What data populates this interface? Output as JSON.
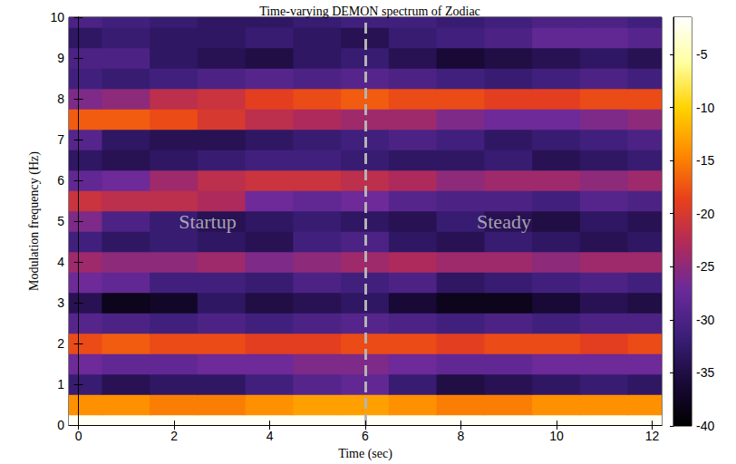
{
  "chart_data": {
    "type": "heatmap",
    "title": "Time-varying DEMON spectrum of Zodiac",
    "x_label": "Time (sec)",
    "y_label": "Modulation frequency (Hz)",
    "x": [
      0,
      1,
      2,
      3,
      4,
      5,
      6,
      7,
      8,
      9,
      10,
      11,
      12
    ],
    "y": [
      0,
      0.5,
      1,
      1.5,
      2,
      2.5,
      3,
      3.5,
      4,
      4.5,
      5,
      5.5,
      6,
      6.5,
      7,
      7.5,
      8,
      8.5,
      9,
      9.5,
      10
    ],
    "values": [
      [
        -2,
        -2,
        -2,
        -2,
        -2,
        -2,
        -2,
        -2,
        -2,
        -2,
        -2,
        -2,
        -2
      ],
      [
        -14,
        -14,
        -15,
        -15,
        -14,
        -13,
        -13,
        -14,
        -15,
        -15,
        -14,
        -14,
        -14
      ],
      [
        -32,
        -34,
        -33,
        -33,
        -31,
        -29,
        -28,
        -32,
        -35,
        -34,
        -33,
        -32,
        -33
      ],
      [
        -27,
        -28,
        -28,
        -27,
        -27,
        -26,
        -26,
        -27,
        -28,
        -28,
        -27,
        -27,
        -27
      ],
      [
        -18,
        -17,
        -18,
        -18,
        -19,
        -19,
        -18,
        -18,
        -19,
        -18,
        -18,
        -19,
        -18
      ],
      [
        -29,
        -30,
        -31,
        -30,
        -31,
        -30,
        -29,
        -30,
        -31,
        -30,
        -31,
        -30,
        -30
      ],
      [
        -34,
        -38,
        -37,
        -33,
        -35,
        -34,
        -33,
        -36,
        -38,
        -38,
        -36,
        -34,
        -35
      ],
      [
        -27,
        -28,
        -31,
        -31,
        -32,
        -30,
        -31,
        -30,
        -33,
        -32,
        -31,
        -30,
        -31
      ],
      [
        -24,
        -25,
        -25,
        -24,
        -26,
        -25,
        -24,
        -23,
        -24,
        -24,
        -25,
        -24,
        -24
      ],
      [
        -31,
        -33,
        -32,
        -33,
        -34,
        -31,
        -30,
        -33,
        -34,
        -32,
        -33,
        -34,
        -33
      ],
      [
        -26,
        -30,
        -32,
        -34,
        -33,
        -32,
        -33,
        -34,
        -32,
        -34,
        -35,
        -33,
        -34
      ],
      [
        -21,
        -22,
        -22,
        -23,
        -27,
        -28,
        -27,
        -29,
        -30,
        -30,
        -31,
        -29,
        -30
      ],
      [
        -28,
        -27,
        -24,
        -22,
        -21,
        -21,
        -22,
        -23,
        -25,
        -24,
        -24,
        -25,
        -24
      ],
      [
        -33,
        -34,
        -33,
        -32,
        -31,
        -31,
        -32,
        -33,
        -33,
        -32,
        -34,
        -33,
        -32
      ],
      [
        -29,
        -33,
        -34,
        -34,
        -33,
        -32,
        -31,
        -30,
        -31,
        -33,
        -32,
        -31,
        -30
      ],
      [
        -17,
        -17,
        -18,
        -20,
        -22,
        -23,
        -24,
        -24,
        -26,
        -27,
        -27,
        -26,
        -25
      ],
      [
        -26,
        -25,
        -22,
        -21,
        -19,
        -18,
        -17,
        -18,
        -18,
        -19,
        -19,
        -18,
        -18
      ],
      [
        -31,
        -32,
        -31,
        -30,
        -29,
        -30,
        -29,
        -30,
        -31,
        -32,
        -31,
        -30,
        -31
      ],
      [
        -30,
        -30,
        -33,
        -34,
        -35,
        -33,
        -32,
        -34,
        -36,
        -35,
        -34,
        -33,
        -34
      ],
      [
        -33,
        -32,
        -33,
        -33,
        -32,
        -33,
        -34,
        -32,
        -31,
        -30,
        -28,
        -28,
        -29
      ],
      [
        -30,
        -31,
        -32,
        -33,
        -33,
        -32,
        -31,
        -31,
        -32,
        -31,
        -30,
        -30,
        -31
      ]
    ],
    "xlim": [
      -0.2,
      12.2
    ],
    "xticks": [
      0,
      2,
      4,
      6,
      8,
      10,
      12
    ],
    "ylim": [
      0,
      10
    ],
    "yticks": [
      0,
      1,
      2,
      3,
      4,
      5,
      6,
      7,
      8,
      9,
      10
    ],
    "colorbar": {
      "range": [
        -40,
        -1.5
      ],
      "ticks": [
        -40,
        -35,
        -30,
        -25,
        -20,
        -15,
        -10,
        -5
      ]
    },
    "annotations": [
      {
        "text": "Startup",
        "x": 2.7,
        "y": 5
      },
      {
        "text": "Steady",
        "x": 8.9,
        "y": 5
      }
    ],
    "vlines": [
      {
        "x": 6,
        "line_style": "dashed"
      }
    ],
    "grid": false
  }
}
